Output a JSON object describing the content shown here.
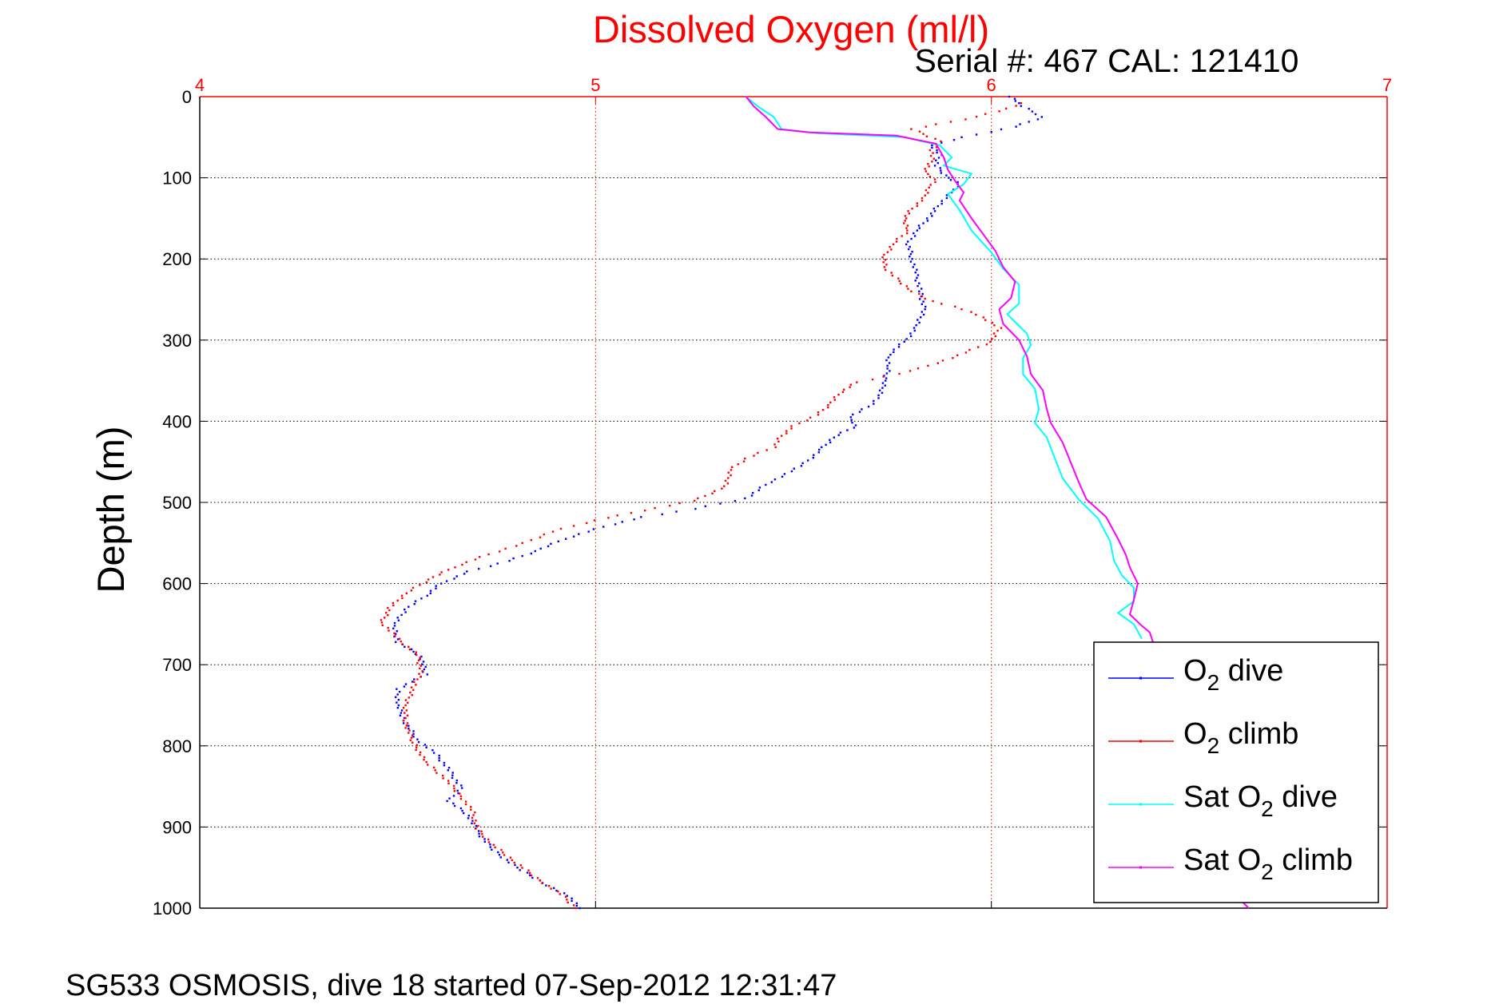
{
  "chart_data": {
    "type": "scatter",
    "title": "Dissolved Oxygen (ml/l)",
    "subtitle": "Serial #: 467  CAL: 121410",
    "ylabel": "Depth (m)",
    "xlabel": "",
    "footer": "SG533 OSMOSIS, dive 18 started 07-Sep-2012 12:31:47",
    "xlim": [
      4,
      7
    ],
    "ylim": [
      0,
      1000
    ],
    "y_reversed": true,
    "x_axis_position": "top",
    "grid": true,
    "legend_position": "bottom-right",
    "x_ticks": [
      "4",
      "5",
      "6",
      "7"
    ],
    "y_ticks": [
      "0",
      "100",
      "200",
      "300",
      "400",
      "500",
      "600",
      "700",
      "800",
      "900",
      "1000"
    ],
    "series": [
      {
        "name": "O2 dive",
        "legend_main": "O",
        "legend_sub": "2",
        "legend_suffix": " dive",
        "color": "#0000ff",
        "style": "dots",
        "points": [
          [
            6.05,
            0
          ],
          [
            6.07,
            8
          ],
          [
            6.09,
            15
          ],
          [
            6.13,
            25
          ],
          [
            6.06,
            37
          ],
          [
            5.93,
            50
          ],
          [
            5.85,
            60
          ],
          [
            5.87,
            72
          ],
          [
            5.86,
            85
          ],
          [
            5.89,
            100
          ],
          [
            5.92,
            108
          ],
          [
            5.9,
            118
          ],
          [
            5.87,
            132
          ],
          [
            5.84,
            150
          ],
          [
            5.81,
            165
          ],
          [
            5.79,
            182
          ],
          [
            5.8,
            200
          ],
          [
            5.81,
            220
          ],
          [
            5.82,
            240
          ],
          [
            5.83,
            262
          ],
          [
            5.81,
            285
          ],
          [
            5.78,
            302
          ],
          [
            5.74,
            318
          ],
          [
            5.74,
            335
          ],
          [
            5.73,
            350
          ],
          [
            5.72,
            368
          ],
          [
            5.69,
            382
          ],
          [
            5.64,
            395
          ],
          [
            5.66,
            405
          ],
          [
            5.6,
            420
          ],
          [
            5.57,
            435
          ],
          [
            5.52,
            455
          ],
          [
            5.44,
            475
          ],
          [
            5.38,
            495
          ],
          [
            5.25,
            508
          ],
          [
            5.12,
            518
          ],
          [
            5.02,
            530
          ],
          [
            4.92,
            545
          ],
          [
            4.85,
            560
          ],
          [
            4.78,
            572
          ],
          [
            4.68,
            585
          ],
          [
            4.61,
            600
          ],
          [
            4.57,
            615
          ],
          [
            4.52,
            632
          ],
          [
            4.49,
            652
          ],
          [
            4.5,
            672
          ],
          [
            4.56,
            690
          ],
          [
            4.57,
            712
          ],
          [
            4.5,
            730
          ],
          [
            4.5,
            750
          ],
          [
            4.52,
            772
          ],
          [
            4.55,
            792
          ],
          [
            4.6,
            812
          ],
          [
            4.63,
            830
          ],
          [
            4.66,
            852
          ],
          [
            4.63,
            868
          ],
          [
            4.68,
            886
          ],
          [
            4.7,
            905
          ],
          [
            4.74,
            928
          ],
          [
            4.8,
            950
          ],
          [
            4.88,
            972
          ],
          [
            4.94,
            988
          ],
          [
            4.96,
            1000
          ]
        ]
      },
      {
        "name": "O2 climb",
        "legend_main": "O",
        "legend_sub": "2",
        "legend_suffix": " climb",
        "color": "#ff0000",
        "style": "dots",
        "points": [
          [
            6.08,
            8
          ],
          [
            6.02,
            18
          ],
          [
            5.93,
            28
          ],
          [
            5.8,
            40
          ],
          [
            5.87,
            55
          ],
          [
            5.85,
            66
          ],
          [
            5.85,
            80
          ],
          [
            5.83,
            92
          ],
          [
            5.86,
            102
          ],
          [
            5.84,
            112
          ],
          [
            5.83,
            125
          ],
          [
            5.8,
            138
          ],
          [
            5.78,
            150
          ],
          [
            5.79,
            165
          ],
          [
            5.75,
            182
          ],
          [
            5.73,
            198
          ],
          [
            5.73,
            210
          ],
          [
            5.76,
            224
          ],
          [
            5.8,
            240
          ],
          [
            5.85,
            252
          ],
          [
            5.93,
            262
          ],
          [
            5.98,
            272
          ],
          [
            6.02,
            285
          ],
          [
            6.0,
            302
          ],
          [
            5.9,
            322
          ],
          [
            5.8,
            338
          ],
          [
            5.66,
            352
          ],
          [
            5.62,
            364
          ],
          [
            5.59,
            380
          ],
          [
            5.56,
            392
          ],
          [
            5.5,
            406
          ],
          [
            5.47,
            418
          ],
          [
            5.45,
            432
          ],
          [
            5.38,
            446
          ],
          [
            5.34,
            460
          ],
          [
            5.33,
            480
          ],
          [
            5.25,
            498
          ],
          [
            5.12,
            510
          ],
          [
            5.0,
            522
          ],
          [
            4.89,
            536
          ],
          [
            4.82,
            550
          ],
          [
            4.73,
            564
          ],
          [
            4.64,
            580
          ],
          [
            4.58,
            595
          ],
          [
            4.52,
            612
          ],
          [
            4.48,
            630
          ],
          [
            4.46,
            648
          ],
          [
            4.5,
            668
          ],
          [
            4.55,
            688
          ],
          [
            4.56,
            708
          ],
          [
            4.54,
            728
          ],
          [
            4.52,
            750
          ],
          [
            4.52,
            772
          ],
          [
            4.54,
            796
          ],
          [
            4.57,
            820
          ],
          [
            4.62,
            840
          ],
          [
            4.66,
            862
          ],
          [
            4.69,
            882
          ],
          [
            4.7,
            902
          ],
          [
            4.74,
            922
          ],
          [
            4.8,
            944
          ],
          [
            4.86,
            966
          ],
          [
            4.92,
            986
          ],
          [
            4.95,
            1000
          ]
        ]
      },
      {
        "name": "Sat O2 dive",
        "legend_main": "Sat O",
        "legend_sub": "2",
        "legend_suffix": " dive",
        "color": "#00ffff",
        "style": "line",
        "points": [
          [
            5.38,
            0
          ],
          [
            5.41,
            12
          ],
          [
            5.45,
            25
          ],
          [
            5.47,
            40
          ],
          [
            5.56,
            45
          ],
          [
            5.78,
            50
          ],
          [
            5.87,
            60
          ],
          [
            5.9,
            75
          ],
          [
            5.88,
            85
          ],
          [
            5.95,
            95
          ],
          [
            5.93,
            108
          ],
          [
            5.89,
            120
          ],
          [
            5.92,
            140
          ],
          [
            5.95,
            165
          ],
          [
            6.0,
            192
          ],
          [
            6.03,
            212
          ],
          [
            6.07,
            232
          ],
          [
            6.07,
            255
          ],
          [
            6.04,
            268
          ],
          [
            6.09,
            292
          ],
          [
            6.1,
            306
          ],
          [
            6.08,
            322
          ],
          [
            6.08,
            342
          ],
          [
            6.11,
            360
          ],
          [
            6.12,
            385
          ],
          [
            6.11,
            402
          ],
          [
            6.14,
            420
          ],
          [
            6.16,
            445
          ],
          [
            6.18,
            470
          ],
          [
            6.22,
            496
          ],
          [
            6.27,
            520
          ],
          [
            6.3,
            548
          ],
          [
            6.31,
            572
          ],
          [
            6.33,
            590
          ],
          [
            6.36,
            605
          ],
          [
            6.36,
            622
          ],
          [
            6.32,
            636
          ],
          [
            6.36,
            650
          ],
          [
            6.38,
            668
          ]
        ]
      },
      {
        "name": "Sat O2 climb",
        "legend_main": "Sat O",
        "legend_sub": "2",
        "legend_suffix": " climb",
        "color": "#ff00ff",
        "style": "line",
        "points": [
          [
            5.38,
            0
          ],
          [
            5.4,
            12
          ],
          [
            5.43,
            25
          ],
          [
            5.46,
            40
          ],
          [
            5.54,
            44
          ],
          [
            5.76,
            48
          ],
          [
            5.86,
            58
          ],
          [
            5.88,
            75
          ],
          [
            5.89,
            90
          ],
          [
            5.91,
            105
          ],
          [
            5.93,
            118
          ],
          [
            5.92,
            128
          ],
          [
            5.95,
            150
          ],
          [
            5.98,
            170
          ],
          [
            6.01,
            190
          ],
          [
            6.03,
            210
          ],
          [
            6.06,
            228
          ],
          [
            6.05,
            248
          ],
          [
            6.02,
            262
          ],
          [
            6.03,
            280
          ],
          [
            6.07,
            300
          ],
          [
            6.09,
            320
          ],
          [
            6.1,
            342
          ],
          [
            6.13,
            362
          ],
          [
            6.14,
            385
          ],
          [
            6.15,
            402
          ],
          [
            6.18,
            426
          ],
          [
            6.2,
            450
          ],
          [
            6.22,
            474
          ],
          [
            6.24,
            496
          ],
          [
            6.29,
            518
          ],
          [
            6.32,
            545
          ],
          [
            6.34,
            565
          ],
          [
            6.35,
            580
          ],
          [
            6.37,
            600
          ],
          [
            6.36,
            620
          ],
          [
            6.35,
            638
          ],
          [
            6.38,
            652
          ],
          [
            6.4,
            660
          ],
          [
            6.63,
            990
          ],
          [
            6.65,
            1000
          ]
        ]
      }
    ]
  }
}
